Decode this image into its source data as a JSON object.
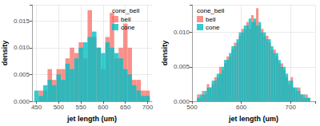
{
  "chart_data": [
    {
      "type": "histogram",
      "xlabel": "jet length (um)",
      "ylabel": "density",
      "legend_title": "cone_bell",
      "legend": "upper right",
      "grid": true,
      "bins": [
        445,
        455,
        465,
        475,
        485,
        495,
        505,
        515,
        525,
        535,
        545,
        555,
        565,
        575,
        585,
        595,
        605,
        615,
        625,
        635,
        645,
        655,
        665,
        675,
        685,
        695,
        705
      ],
      "series": [
        {
          "name": "bell",
          "color": "#F8766D",
          "values": [
            0,
            0.002,
            0.002,
            0.006,
            0.004,
            0.006,
            0.006,
            0.008,
            0.01,
            0.009,
            0.011,
            0.008,
            0.017,
            0.012,
            0.01,
            0.006,
            0.012,
            0.0165,
            0.008,
            0.01,
            0.0145,
            0.01,
            0.004,
            0.004,
            0.002,
            0.002
          ]
        },
        {
          "name": "cone",
          "color": "#00BFC4",
          "values": [
            0.002,
            0.001,
            0.003,
            0.004,
            0.003,
            0.005,
            0.004,
            0.007,
            0.006,
            0.008,
            0.01,
            0.011,
            0.012,
            0.013,
            0.01,
            0.009,
            0.011,
            0.01,
            0.009,
            0.008,
            0.006,
            0.005,
            0.003,
            0.002,
            0.001,
            0.001
          ]
        }
      ],
      "xlim": [
        440,
        710
      ],
      "xticks": [
        450,
        500,
        550,
        600,
        650,
        700
      ],
      "ylim": [
        0,
        0.018
      ],
      "yticks": [
        {
          "value": 0,
          "label": "0.000"
        },
        {
          "value": 0.005,
          "label": "0.005"
        },
        {
          "value": 0.01,
          "label": "0.010"
        },
        {
          "value": 0.015,
          "label": "0.015"
        }
      ]
    },
    {
      "type": "histogram",
      "xlabel": "jet length (um)",
      "ylabel": "density",
      "legend_title": "cone_bell",
      "legend": "upper left",
      "grid": true,
      "bins": [
        510,
        515,
        520,
        525,
        530,
        535,
        540,
        545,
        550,
        555,
        560,
        565,
        570,
        575,
        580,
        585,
        590,
        595,
        600,
        605,
        610,
        615,
        620,
        625,
        630,
        635,
        640,
        645,
        650,
        655,
        660,
        665,
        670,
        675,
        680,
        685,
        690,
        695,
        700,
        705,
        710,
        715,
        720,
        725,
        730,
        735,
        740
      ],
      "series": [
        {
          "name": "bell",
          "color": "#F8766D",
          "values": [
            0.001,
            0.0005,
            0.0015,
            0.001,
            0.0025,
            0.002,
            0.0025,
            0.0035,
            0.0035,
            0.005,
            0.0045,
            0.0055,
            0.0065,
            0.0065,
            0.0075,
            0.0085,
            0.0085,
            0.0095,
            0.0105,
            0.0105,
            0.0115,
            0.0105,
            0.0125,
            0.0115,
            0.0135,
            0.011,
            0.0105,
            0.0095,
            0.0095,
            0.0085,
            0.0075,
            0.0075,
            0.0065,
            0.0055,
            0.0055,
            0.0045,
            0.0035,
            0.0025,
            0.0035,
            0.002,
            0.0015,
            0.002,
            0.001,
            0.0005,
            0.001,
            0.0005
          ]
        },
        {
          "name": "cone",
          "color": "#00BFC4",
          "values": [
            0.0005,
            0.001,
            0.001,
            0.0015,
            0.002,
            0.002,
            0.003,
            0.003,
            0.004,
            0.004,
            0.005,
            0.006,
            0.006,
            0.007,
            0.008,
            0.008,
            0.009,
            0.01,
            0.01,
            0.011,
            0.011,
            0.012,
            0.0115,
            0.012,
            0.011,
            0.0115,
            0.01,
            0.01,
            0.009,
            0.009,
            0.008,
            0.007,
            0.007,
            0.006,
            0.005,
            0.005,
            0.004,
            0.003,
            0.003,
            0.002,
            0.002,
            0.0015,
            0.001,
            0.001,
            0.0005,
            0.0005
          ]
        }
      ],
      "xlim": [
        500,
        750
      ],
      "xticks": [
        500,
        600,
        700
      ],
      "ylim": [
        0,
        0.014
      ],
      "yticks": [
        {
          "value": 0,
          "label": "0.000"
        },
        {
          "value": 0.005,
          "label": "0.005"
        },
        {
          "value": 0.01,
          "label": "0.010"
        }
      ]
    }
  ]
}
